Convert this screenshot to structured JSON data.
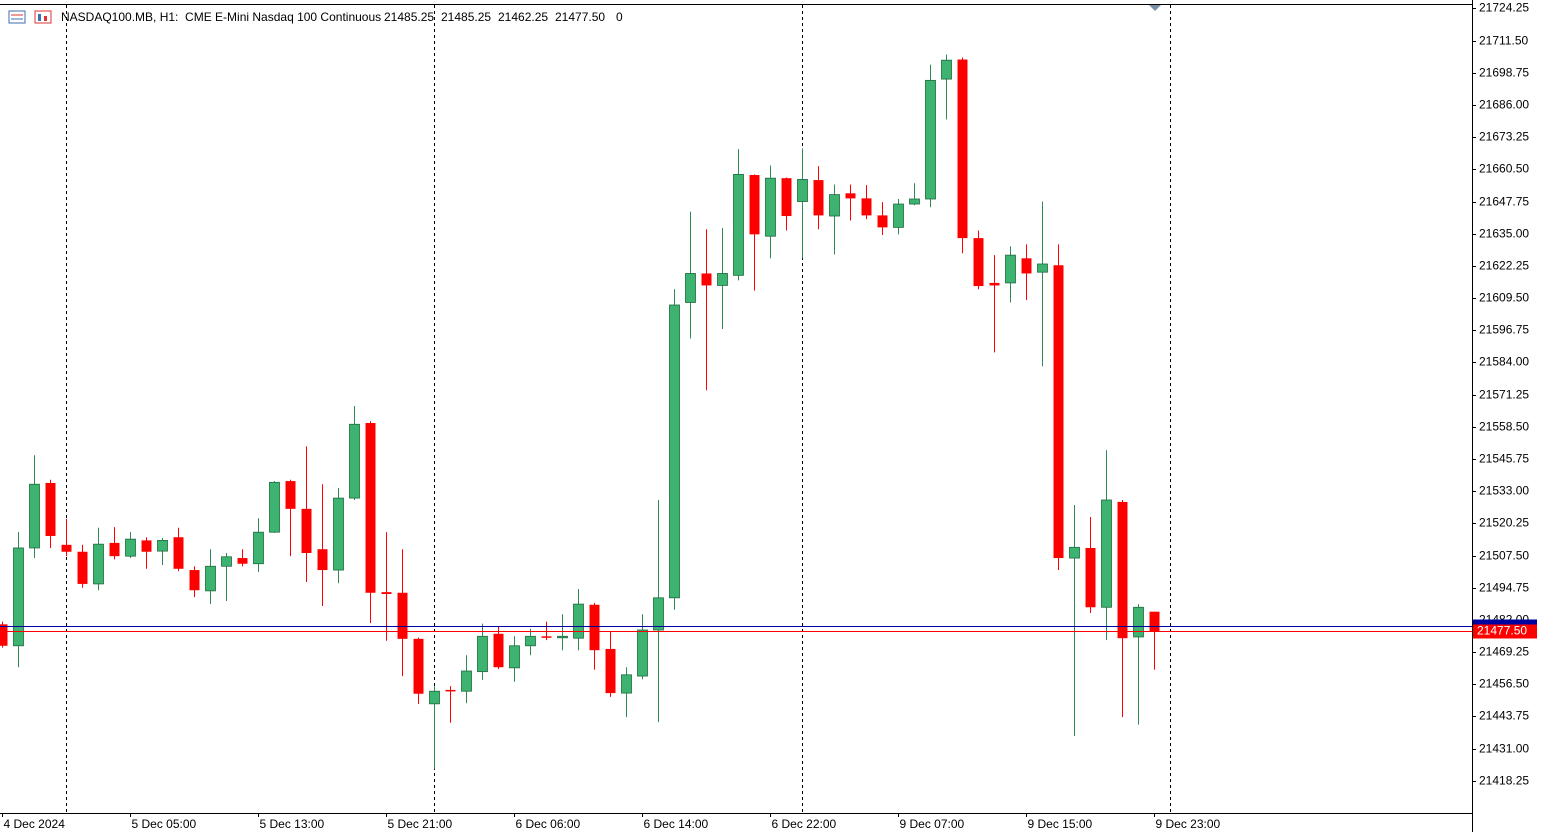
{
  "chart_data": {
    "type": "candlestick",
    "title": "NASDAQ100.MB, H1:  CME E-Mini Nasdaq 100 Continuous",
    "header_ohlc": [
      "21485.25",
      "21485.25",
      "21462.25",
      "21477.50"
    ],
    "header_volume": "0",
    "categories": [
      "4 Dec 2024",
      null,
      null,
      null,
      null,
      null,
      null,
      null,
      "5 Dec 05:00",
      null,
      null,
      null,
      null,
      null,
      null,
      null,
      "5 Dec 13:00",
      null,
      null,
      null,
      null,
      null,
      null,
      null,
      "5 Dec 21:00",
      null,
      null,
      null,
      null,
      null,
      null,
      null,
      "6 Dec 06:00",
      null,
      null,
      null,
      null,
      null,
      null,
      null,
      "6 Dec 14:00",
      null,
      null,
      null,
      null,
      null,
      null,
      null,
      "6 Dec 22:00",
      null,
      null,
      null,
      null,
      null,
      null,
      null,
      "9 Dec 07:00",
      null,
      null,
      null,
      null,
      null,
      null,
      null,
      "9 Dec 15:00",
      null,
      null,
      null,
      null,
      null,
      null,
      null,
      "9 Dec 23:00"
    ],
    "open": [
      21480.25,
      21471.75,
      21510.5,
      21536.25,
      21511.75,
      21509,
      21496.25,
      21512.5,
      21507.25,
      21513.5,
      21509.25,
      21514.75,
      21501.75,
      21493.5,
      21503.25,
      21506.5,
      21504.25,
      21516.75,
      21537,
      21526,
      21510,
      21501.75,
      21530.25,
      21560,
      21493,
      21492.75,
      21474.5,
      21448.75,
      21454.25,
      21453.75,
      21461.5,
      21476.5,
      21463,
      21471.75,
      21475.5,
      21475.25,
      21474.75,
      21488,
      21470.5,
      21453,
      21459.75,
      21478,
      21490.75,
      21607.75,
      21619.25,
      21614.5,
      21618.5,
      21658.25,
      21634,
      21657,
      21647.75,
      21656.25,
      21642,
      21651,
      21649,
      21642.25,
      21637.5,
      21646.75,
      21648.75,
      21696.25,
      21704,
      21633.25,
      21615.5,
      21615.5,
      21625.25,
      21619.75,
      21622.5,
      21506.5,
      21510.5,
      21487,
      21528.75,
      21475.25,
      21485.25
    ],
    "high": [
      21481.25,
      21516.75,
      21547.25,
      21537.5,
      21522,
      21511.75,
      21518.5,
      21518.75,
      21516.75,
      21514.75,
      21514.5,
      21518.5,
      21503.25,
      21510,
      21508.5,
      21510,
      21522.25,
      21537,
      21537.5,
      21550.75,
      21535.75,
      21534.25,
      21566.75,
      21560.75,
      21516.75,
      21510,
      21475,
      21455.75,
      21455.75,
      21468,
      21480.5,
      21479.25,
      21475.5,
      21478.5,
      21481.25,
      21484.25,
      21494.25,
      21488.75,
      21477.25,
      21463.25,
      21484.25,
      21529.5,
      21613,
      21643.75,
      21636.75,
      21637.25,
      21668.5,
      21658.5,
      21662,
      21657.25,
      21668.75,
      21661.75,
      21654.5,
      21654.5,
      21654.25,
      21647.5,
      21648.75,
      21655,
      21702,
      21706,
      21704.75,
      21636.25,
      21626.5,
      21630,
      21630.75,
      21647.75,
      21630.75,
      21527.5,
      21522.75,
      21549.25,
      21529.5,
      21488.25,
      21485.25
    ],
    "low": [
      21471,
      21463.25,
      21506.5,
      21510.5,
      21507.25,
      21494.75,
      21493.75,
      21506,
      21506.5,
      21502.25,
      21503.75,
      21501.25,
      21491,
      21488.25,
      21489.5,
      21503.25,
      21501,
      21516.5,
      21507.25,
      21497,
      21487.5,
      21496.5,
      21529.5,
      21480.75,
      21473.75,
      21459.75,
      21448.75,
      21423,
      21441.25,
      21449,
      21458.25,
      21462.5,
      21457.5,
      21468,
      21474,
      21470,
      21470,
      21462.25,
      21451.5,
      21443.5,
      21458.5,
      21441.5,
      21486,
      21593.5,
      21573,
      21597.25,
      21616.5,
      21612.5,
      21625.25,
      21636.25,
      21625.25,
      21636.75,
      21626.75,
      21640.25,
      21640.75,
      21634.5,
      21634.75,
      21646.25,
      21645.5,
      21680.25,
      21627.25,
      21613,
      21588,
      21607.75,
      21608.75,
      21582.5,
      21501.75,
      21436,
      21484.75,
      21474,
      21443.5,
      21440.5,
      21462.25
    ],
    "close": [
      21471.75,
      21510.5,
      21535.75,
      21515.25,
      21509,
      21496.25,
      21512,
      21507.25,
      21514,
      21509,
      21513.5,
      21502.25,
      21493.75,
      21503.25,
      21507,
      21504.25,
      21516.75,
      21536.5,
      21526,
      21508.5,
      21501.75,
      21530.25,
      21559.5,
      21492.75,
      21492.25,
      21474.5,
      21452.75,
      21453.75,
      21453.75,
      21461.75,
      21475.5,
      21463.25,
      21471.75,
      21475.5,
      21475.25,
      21475.5,
      21488.25,
      21470,
      21453,
      21460.25,
      21478,
      21490.75,
      21606.75,
      21619.25,
      21614.5,
      21619.25,
      21658.5,
      21634.75,
      21657,
      21642,
      21656.5,
      21642.25,
      21650.5,
      21649,
      21642.25,
      21637.5,
      21646.75,
      21648.75,
      21695.75,
      21703.75,
      21633.25,
      21614.25,
      21614.5,
      21626.5,
      21619.25,
      21623,
      21506.5,
      21510.75,
      21487,
      21529.5,
      21474.75,
      21487,
      21477.5
    ],
    "up_color": "#3cb371",
    "down_color": "#ff0000",
    "last_price": {
      "value": 21477.5,
      "label": "21477.50"
    },
    "last_price_color": "#ff0000",
    "ask_line": 21479.5,
    "ask_color": "#0000a0",
    "ylim": [
      21405.5,
      21726
    ],
    "yticks": [
      21724.25,
      {
        "value": 21711.5,
        "label": "21711.50"
      },
      21698.75,
      {
        "value": 21686,
        "label": "21686.00"
      },
      21673.25,
      {
        "value": 21660.5,
        "label": "21660.50"
      },
      21647.75,
      {
        "value": 21635,
        "label": "21635.00"
      },
      21622.25,
      {
        "value": 21609.5,
        "label": "21609.50"
      },
      21596.75,
      {
        "value": 21584,
        "label": "21584.00"
      },
      21571.25,
      {
        "value": 21558.5,
        "label": "21558.50"
      },
      21545.75,
      {
        "value": 21533,
        "label": "21533.00"
      },
      21520.25,
      {
        "value": 21507.5,
        "label": "21507.50"
      },
      21494.75,
      {
        "value": 21482,
        "label": "21482.00"
      },
      21469.25,
      {
        "value": 21456.5,
        "label": "21456.50"
      },
      21443.75,
      {
        "value": 21431,
        "label": "21431.00"
      },
      21418.25
    ],
    "grid": false
  }
}
